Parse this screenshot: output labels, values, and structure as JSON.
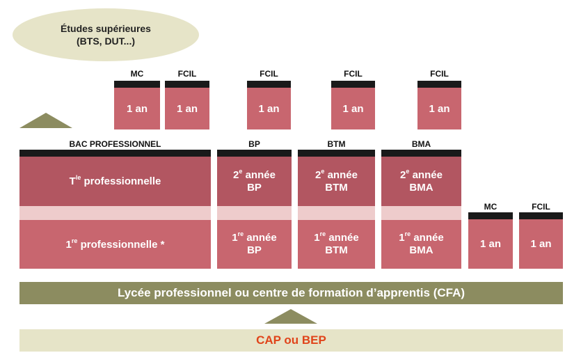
{
  "etudes": {
    "line1": "Études supérieures",
    "line2": "(BTS, DUT...)"
  },
  "top_cols": [
    {
      "label": "MC",
      "duration": "1 an"
    },
    {
      "label": "FCIL",
      "duration": "1 an"
    },
    {
      "label": "FCIL",
      "duration": "1 an"
    },
    {
      "label": "FCIL",
      "duration": "1 an"
    },
    {
      "label": "FCIL",
      "duration": "1 an"
    }
  ],
  "bac_pro": {
    "label": "BAC PROFESSIONNEL",
    "year2": {
      "sup": "le",
      "text": "professionnelle",
      "prefix": "T"
    },
    "year1": {
      "prefix": "1",
      "sup": "re",
      "text": "professionnelle *"
    }
  },
  "bp": {
    "label": "BP",
    "y2_prefix": "2",
    "y2_sup": "e",
    "y2_text": "année",
    "y2_name": "BP",
    "y1_prefix": "1",
    "y1_sup": "re",
    "y1_text": "année",
    "y1_name": "BP"
  },
  "btm": {
    "label": "BTM",
    "y2_prefix": "2",
    "y2_sup": "e",
    "y2_text": "année",
    "y2_name": "BTM",
    "y1_prefix": "1",
    "y1_sup": "re",
    "y1_text": "année",
    "y1_name": "BTM"
  },
  "bma": {
    "label": "BMA",
    "y2_prefix": "2",
    "y2_sup": "e",
    "y2_text": "année",
    "y2_name": "BMA",
    "y1_prefix": "1",
    "y1_sup": "re",
    "y1_text": "année",
    "y1_name": "BMA"
  },
  "right_cols": [
    {
      "label": "MC",
      "duration": "1 an"
    },
    {
      "label": "FCIL",
      "duration": "1 an"
    }
  ],
  "lycee": "Lycée professionnel ou centre de formation d’apprentis (CFA)",
  "cap": "CAP ou BEP",
  "colors": {
    "olive": "#8c8c60",
    "pale": "#e6e4c8",
    "pink_light": "#c8666f",
    "pink_dark": "#b25661",
    "stripe": "#eecccc",
    "accent_red": "#e0441a"
  }
}
